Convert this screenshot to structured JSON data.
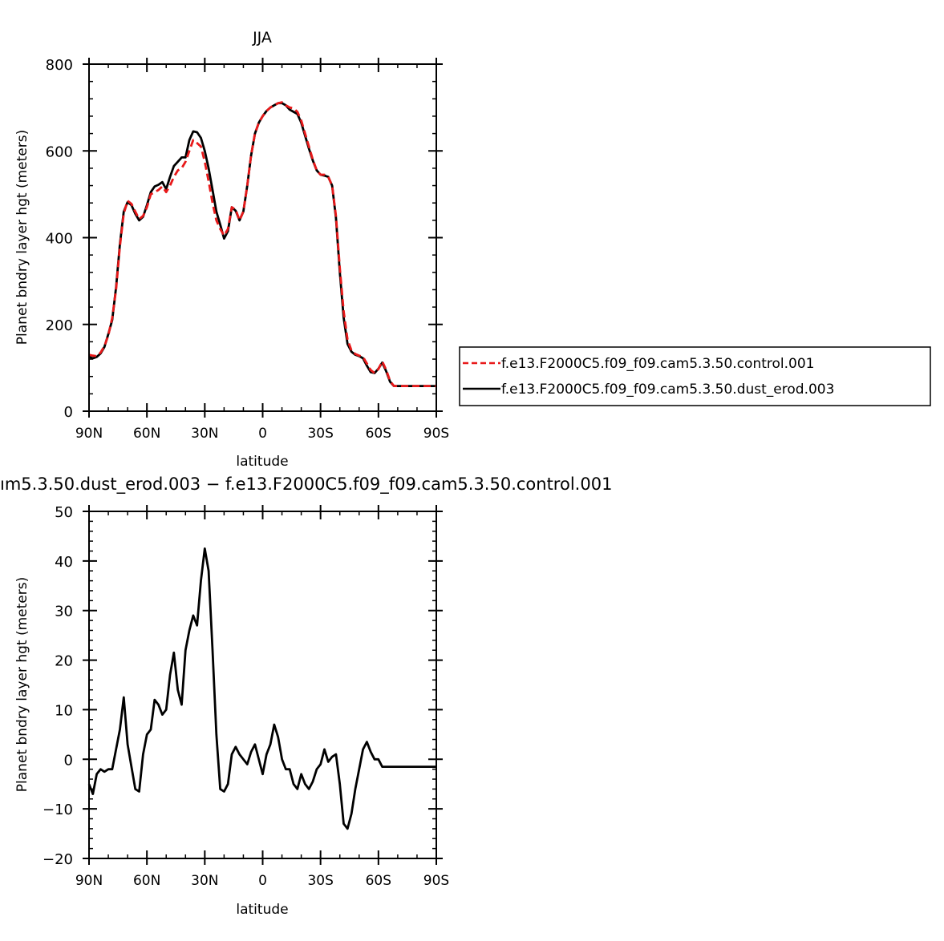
{
  "chart_data": [
    {
      "type": "line",
      "title": "JJA",
      "xlabel": "latitude",
      "ylabel": "Planet bndry layer hgt (meters)",
      "xlim": [
        90,
        -90
      ],
      "ylim": [
        0,
        800
      ],
      "xticks": [
        90,
        60,
        30,
        0,
        -30,
        -60,
        -90
      ],
      "xtick_labels": [
        "90N",
        "60N",
        "30N",
        "0",
        "30S",
        "60S",
        "90S"
      ],
      "yticks": [
        0,
        200,
        400,
        600,
        800
      ],
      "ytick_labels": [
        "0",
        "200",
        "400",
        "600",
        "800"
      ],
      "x": [
        90,
        88,
        86,
        84,
        82,
        80,
        78,
        76,
        74,
        72,
        70,
        68,
        66,
        64,
        62,
        60,
        58,
        56,
        54,
        52,
        50,
        48,
        46,
        44,
        42,
        40,
        38,
        36,
        34,
        32,
        30,
        28,
        26,
        24,
        22,
        20,
        18,
        16,
        14,
        12,
        10,
        8,
        6,
        4,
        2,
        0,
        -2,
        -4,
        -6,
        -8,
        -10,
        -12,
        -14,
        -16,
        -18,
        -20,
        -22,
        -24,
        -26,
        -28,
        -30,
        -32,
        -34,
        -36,
        -38,
        -40,
        -42,
        -44,
        -46,
        -48,
        -50,
        -52,
        -54,
        -56,
        -58,
        -60,
        -62,
        -64,
        -66,
        -68,
        -70,
        -72,
        -74,
        -76,
        -78,
        -80,
        -82,
        -84,
        -86,
        -88,
        -90
      ],
      "series": [
        {
          "name": "f.e13.F2000C5.f09_f09.cam5.3.50.control.001",
          "color": "#e8191a",
          "dash": "dashed",
          "values": [
            130,
            128,
            127,
            135,
            150,
            175,
            215,
            280,
            380,
            455,
            485,
            478,
            460,
            443,
            450,
            470,
            500,
            505,
            510,
            518,
            505,
            520,
            540,
            555,
            560,
            575,
            600,
            625,
            618,
            610,
            575,
            530,
            480,
            440,
            420,
            405,
            420,
            470,
            465,
            440,
            460,
            520,
            590,
            640,
            665,
            680,
            692,
            700,
            705,
            710,
            712,
            705,
            700,
            698,
            690,
            670,
            640,
            610,
            580,
            555,
            545,
            545,
            540,
            520,
            450,
            330,
            230,
            165,
            140,
            132,
            128,
            125,
            110,
            95,
            88,
            97,
            115,
            95,
            70,
            58,
            58,
            58,
            58,
            58,
            58,
            58,
            58,
            58,
            58,
            58,
            58
          ]
        },
        {
          "name": "f.e13.F2000C5.f09_f09.cam5.3.50.dust_erod.003",
          "color": "#000000",
          "dash": "solid",
          "values": [
            125,
            122,
            125,
            133,
            148,
            178,
            210,
            285,
            385,
            460,
            482,
            475,
            455,
            440,
            448,
            475,
            505,
            518,
            522,
            528,
            512,
            540,
            565,
            575,
            585,
            585,
            625,
            645,
            643,
            630,
            600,
            560,
            510,
            460,
            430,
            398,
            415,
            470,
            462,
            440,
            460,
            520,
            590,
            640,
            665,
            680,
            692,
            700,
            705,
            710,
            710,
            705,
            695,
            690,
            685,
            665,
            635,
            605,
            578,
            555,
            545,
            543,
            540,
            520,
            445,
            320,
            215,
            155,
            137,
            130,
            127,
            122,
            105,
            90,
            88,
            98,
            112,
            92,
            68,
            58,
            58,
            58,
            58,
            58,
            58,
            58,
            58,
            58,
            58,
            58,
            58
          ]
        }
      ],
      "legend": "right"
    },
    {
      "type": "line",
      "title": "ım5.3.50.dust_erod.003 − f.e13.F2000C5.f09_f09.cam5.3.50.control.001",
      "xlabel": "latitude",
      "ylabel": "Planet bndry layer hgt (meters)",
      "xlim": [
        90,
        -90
      ],
      "ylim": [
        -20,
        50
      ],
      "xticks": [
        90,
        60,
        30,
        0,
        -30,
        -60,
        -90
      ],
      "xtick_labels": [
        "90N",
        "60N",
        "30N",
        "0",
        "30S",
        "60S",
        "90S"
      ],
      "yticks": [
        -20,
        -10,
        0,
        10,
        20,
        30,
        40,
        50
      ],
      "ytick_labels": [
        "−20",
        "−10",
        "0",
        "10",
        "20",
        "30",
        "40",
        "50"
      ],
      "x": [
        90,
        88,
        86,
        84,
        82,
        80,
        78,
        76,
        74,
        72,
        70,
        68,
        66,
        64,
        62,
        60,
        58,
        56,
        54,
        52,
        50,
        48,
        46,
        44,
        42,
        40,
        38,
        36,
        34,
        32,
        30,
        28,
        26,
        24,
        22,
        20,
        18,
        16,
        14,
        12,
        10,
        8,
        6,
        4,
        2,
        0,
        -2,
        -4,
        -6,
        -8,
        -10,
        -12,
        -14,
        -16,
        -18,
        -20,
        -22,
        -24,
        -26,
        -28,
        -30,
        -32,
        -34,
        -36,
        -38,
        -40,
        -42,
        -44,
        -46,
        -48,
        -50,
        -52,
        -54,
        -56,
        -58,
        -60,
        -62,
        -64,
        -66,
        -68,
        -70,
        -72,
        -74,
        -76,
        -78,
        -80,
        -82,
        -84,
        -86,
        -88,
        -90
      ],
      "series": [
        {
          "name": "",
          "color": "#000000",
          "dash": "solid",
          "values": [
            -5,
            -7,
            -3,
            -2,
            -2.5,
            -2,
            -2,
            2,
            6,
            12.5,
            3,
            -1.5,
            -6,
            -6.5,
            1,
            5,
            6,
            12,
            11,
            9,
            10,
            17,
            21.5,
            14,
            11,
            22,
            26,
            29,
            27,
            36,
            42.5,
            38,
            22,
            5,
            -6,
            -6.5,
            -5,
            1,
            2.5,
            1,
            0,
            -1,
            1.5,
            3,
            0,
            -3,
            1,
            3,
            7,
            4.5,
            0,
            -2,
            -2,
            -5,
            -6,
            -3,
            -5,
            -6,
            -4.5,
            -2,
            -1,
            2,
            -0.5,
            0.5,
            1,
            -5,
            -13,
            -14,
            -11,
            -6,
            -2,
            2,
            3.5,
            1.5,
            0,
            0,
            -1.5,
            -1.5,
            -1.5,
            -1.5,
            -1.5,
            -1.5,
            -1.5,
            -1.5,
            -1.5,
            -1.5,
            -1.5,
            -1.5,
            -1.5,
            -1.5,
            -1.5
          ]
        }
      ]
    }
  ]
}
